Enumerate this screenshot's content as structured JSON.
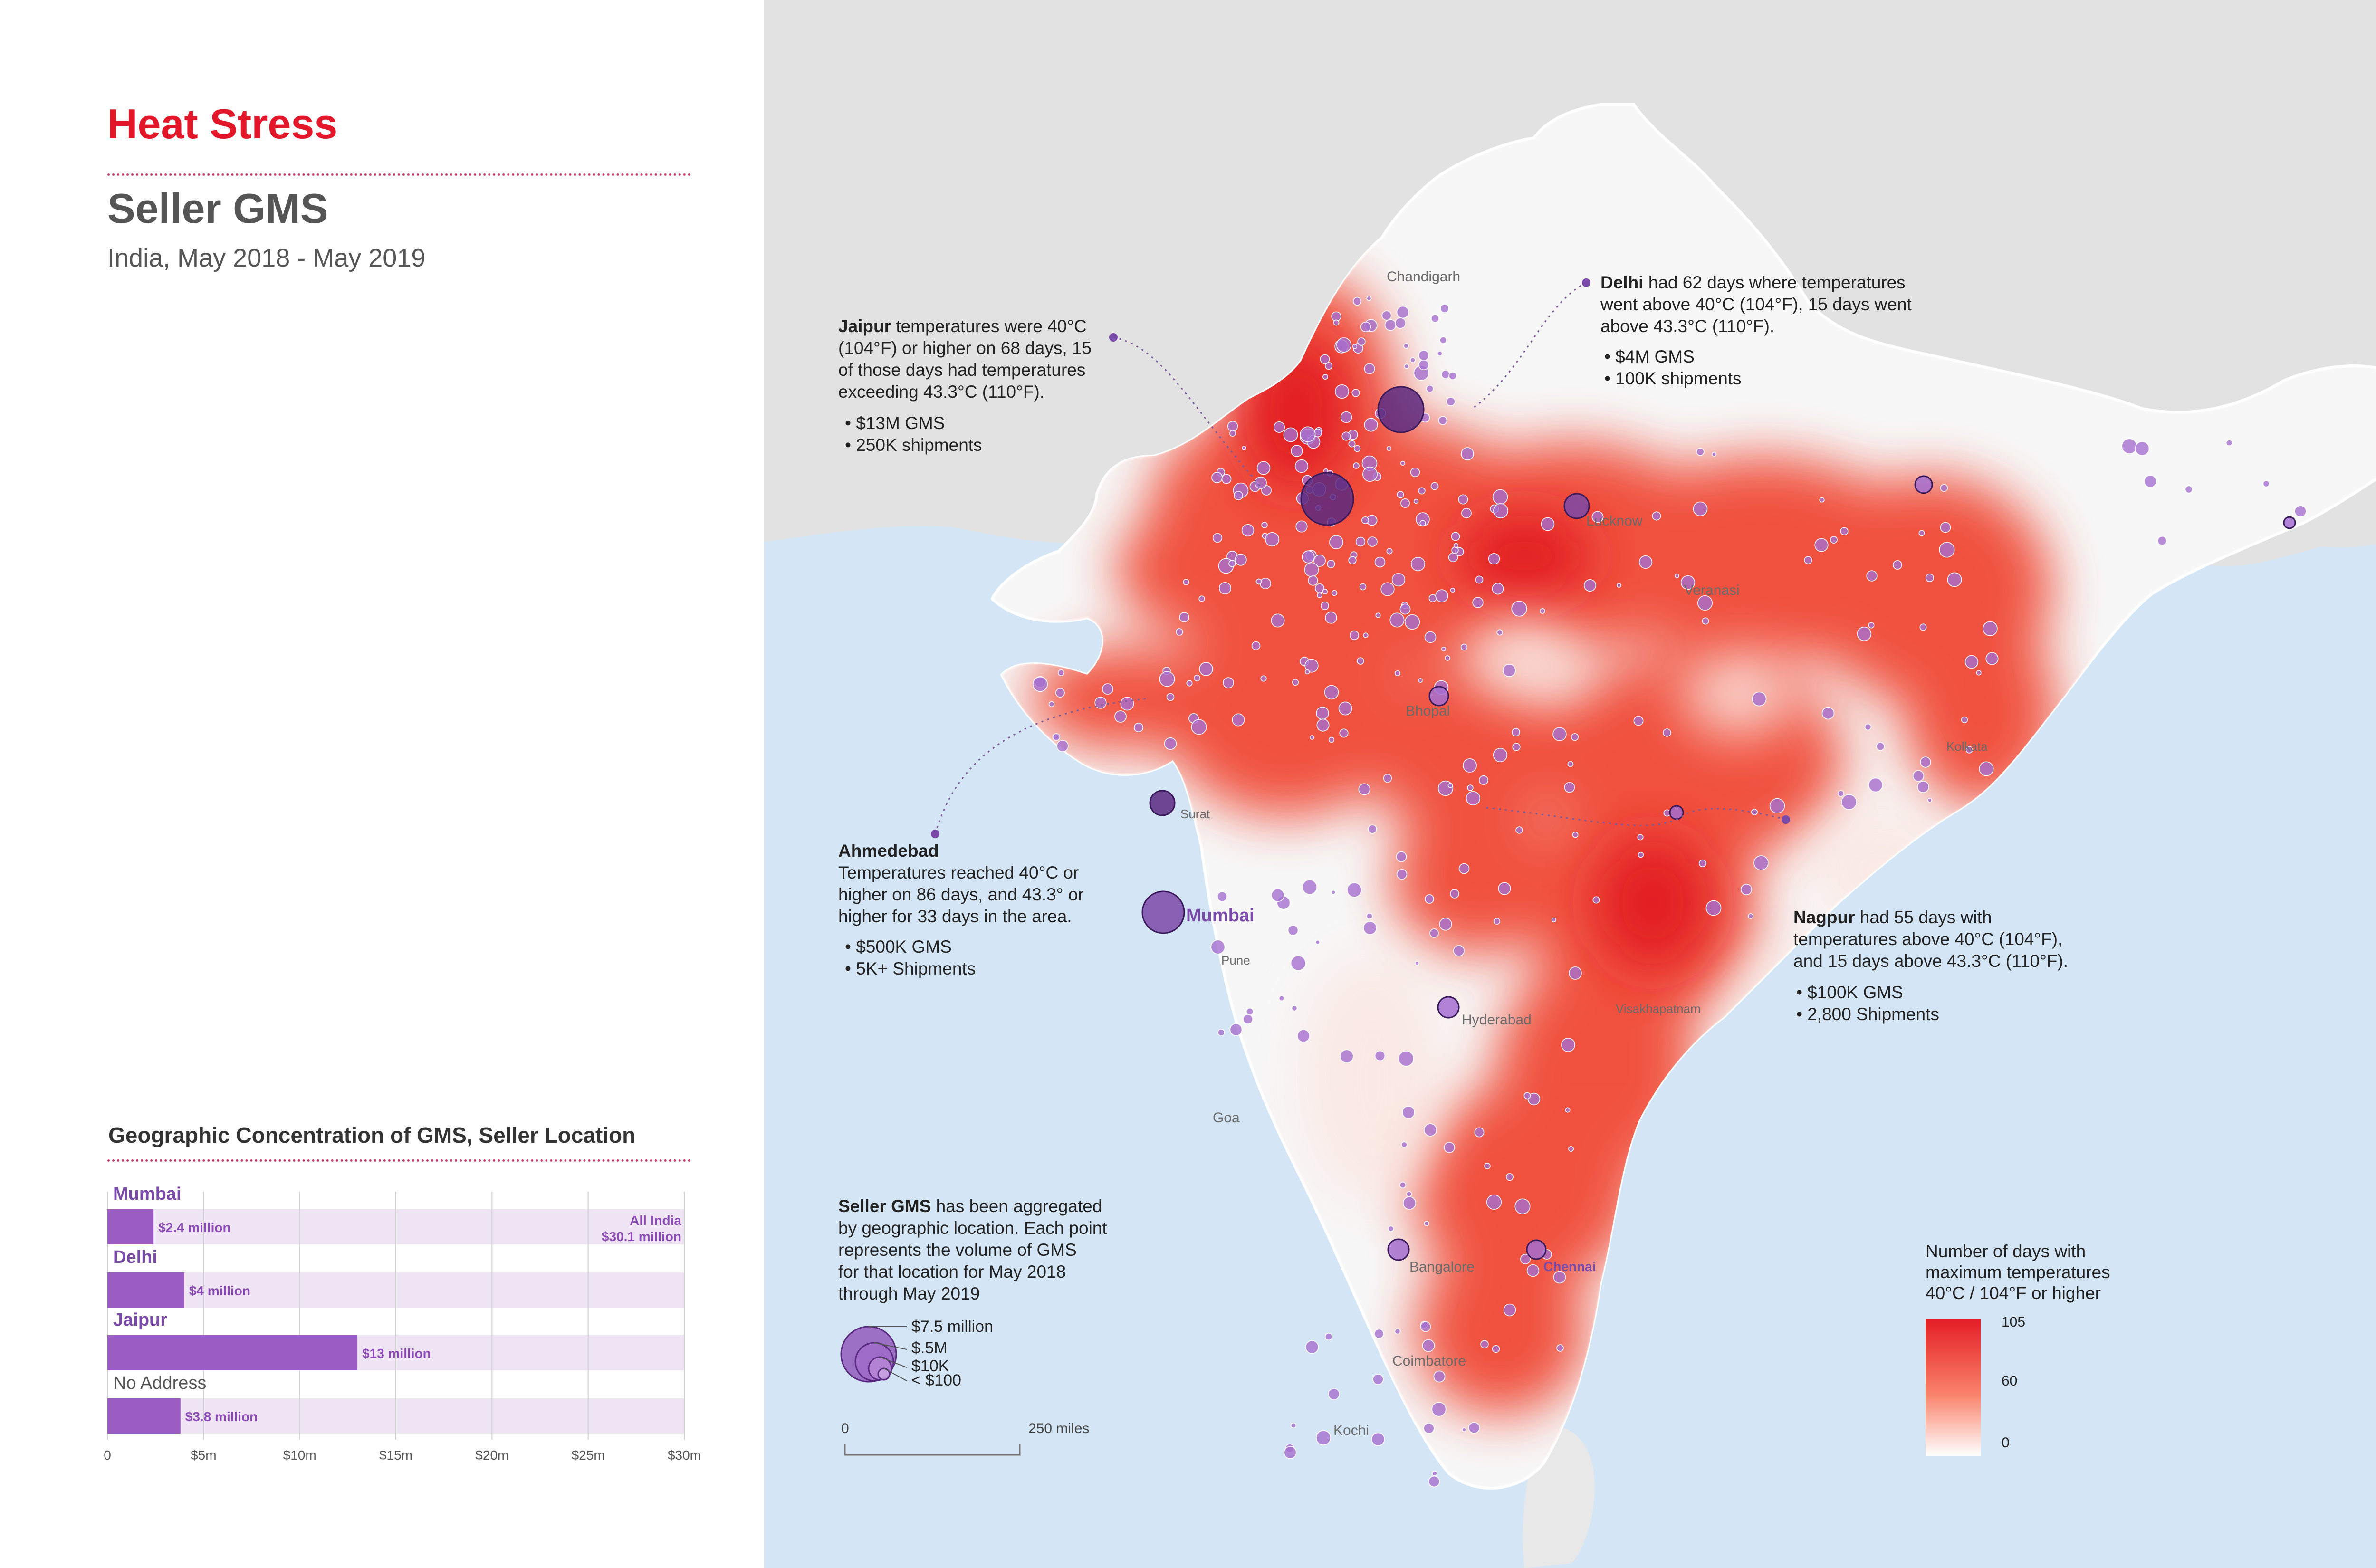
{
  "header": {
    "title": "Heat Stress",
    "subtitle": "Seller GMS",
    "date_range": "India, May 2018 - May 2019"
  },
  "bar_chart_title": "Geographic Concentration of GMS, Seller Location",
  "chart_data": {
    "type": "bar",
    "orientation": "horizontal",
    "categories": [
      "Mumbai",
      "Delhi",
      "Jaipur",
      "No Address"
    ],
    "values": [
      2.4,
      4,
      13,
      3.8
    ],
    "value_labels": [
      "$2.4 million",
      "$4 million",
      "$13 million",
      "$3.8 million"
    ],
    "total_value": 30.1,
    "total_label_line1": "All India",
    "total_label_line2": "$30.1 million",
    "xlim": [
      0,
      30
    ],
    "xticks": [
      0,
      5,
      10,
      15,
      20,
      25,
      30
    ],
    "xtick_labels": [
      "0",
      "$5m",
      "$10m",
      "$15m",
      "$20m",
      "$25m",
      "$30m"
    ],
    "bar_color": "#9a5cc0",
    "track_color": "#efe4f4",
    "grid": true
  },
  "annotations": {
    "jaipur": {
      "name": "Jaipur",
      "line1": " temperatures were 40°C",
      "line2": "(104°F) or higher on 68 days, 15",
      "line3": "of those days had temperatures",
      "line4": "exceeding 43.3°C (110°F).",
      "bullet1": "• $13M GMS",
      "bullet2": "• 250K shipments"
    },
    "delhi": {
      "name": "Delhi",
      "line1": " had 62 days where temperatures",
      "line2": "went above 40°C (104°F), 15 days went",
      "line3": "above 43.3°C (110°F).",
      "bullet1": "• $4M GMS",
      "bullet2": "• 100K shipments"
    },
    "ahmedabad": {
      "name": "Ahmedebad",
      "line1": "Temperatures reached 40°C or",
      "line2": "higher on 86 days, and 43.3° or",
      "line3": "higher for 33 days in the area.",
      "bullet1": "• $500K GMS",
      "bullet2": "• 5K+ Shipments"
    },
    "nagpur": {
      "name": "Nagpur",
      "line1": " had 55 days with",
      "line2": "temperatures above 40°C (104°F),",
      "line3": "and 15 days above 43.3°C (110°F).",
      "bullet1": "• $100K GMS",
      "bullet2": "• 2,800 Shipments"
    }
  },
  "cities": {
    "chandigarh": "Chandigarh",
    "lucknow": "Lucknow",
    "veranasi": "Veranasi",
    "bhopal": "Bhopal",
    "kolkata": "Kolkata",
    "surat": "Surat",
    "mumbai": "Mumbai",
    "pune": "Pune",
    "hyderabad": "Hyderabad",
    "visakhapatnam": "Visakhapatnam",
    "goa": "Goa",
    "bangalore": "Bangalore",
    "chennai": "Chennai",
    "coimbatore": "Coimbatore",
    "kochi": "Kochi"
  },
  "size_legend": {
    "bold": "Seller GMS",
    "line1": " has been aggregated",
    "line2": "by geographic location. Each point",
    "line3": "represents the volume of GMS",
    "line4": "for that location for May 2018",
    "line5": "through May 2019",
    "labels": [
      "$7.5 million",
      "$.5M",
      "$10K",
      "< $100"
    ]
  },
  "scale_bar": {
    "start": "0",
    "end": "250 miles"
  },
  "color_legend": {
    "title_line1": "Number of days with",
    "title_line2": "maximum temperatures",
    "title_line3": "40°C / 104°F or higher",
    "max_label": "105",
    "mid_label": "60",
    "min_label": "0",
    "color_high": "#e41e26",
    "color_low": "#ffffff"
  },
  "colors": {
    "title_red": "#e2172a",
    "purple": "#9a5cc0",
    "sea": "#d4e5f6",
    "land_neighbor": "#e2e2e2"
  }
}
